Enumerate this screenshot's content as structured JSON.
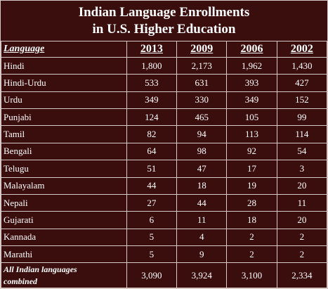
{
  "title": {
    "line1": "Indian Language Enrollments",
    "line2": "in U.S. Higher Education"
  },
  "table": {
    "headers": [
      "Language",
      "2013",
      "2009",
      "2006",
      "2002"
    ],
    "rows": [
      {
        "language": "Hindi",
        "values": [
          "1,800",
          "2,173",
          "1,962",
          "1,430"
        ]
      },
      {
        "language": "Hindi-Urdu",
        "values": [
          "533",
          "631",
          "393",
          "427"
        ]
      },
      {
        "language": "Urdu",
        "values": [
          "349",
          "330",
          "349",
          "152"
        ]
      },
      {
        "language": "Punjabi",
        "values": [
          "124",
          "465",
          "105",
          "99"
        ]
      },
      {
        "language": "Tamil",
        "values": [
          "82",
          "94",
          "113",
          "114"
        ]
      },
      {
        "language": "Bengali",
        "values": [
          "64",
          "98",
          "92",
          "54"
        ]
      },
      {
        "language": "Telugu",
        "values": [
          "51",
          "47",
          "17",
          "3"
        ]
      },
      {
        "language": "Malayalam",
        "values": [
          "44",
          "18",
          "19",
          "20"
        ]
      },
      {
        "language": "Nepali",
        "values": [
          "27",
          "44",
          "28",
          "11"
        ]
      },
      {
        "language": "Gujarati",
        "values": [
          "6",
          "11",
          "18",
          "20"
        ]
      },
      {
        "language": "Kannada",
        "values": [
          "5",
          "4",
          "2",
          "2"
        ]
      },
      {
        "language": "Marathi",
        "values": [
          "5",
          "9",
          "2",
          "2"
        ]
      }
    ],
    "total": {
      "label_line1": "All Indian languages",
      "label_line2": "combined",
      "values": [
        "3,090",
        "3,924",
        "3,100",
        "2,334"
      ]
    }
  },
  "colors": {
    "background": "#3b0e0e",
    "text": "#ffffff",
    "border": "#d8c9c9"
  }
}
